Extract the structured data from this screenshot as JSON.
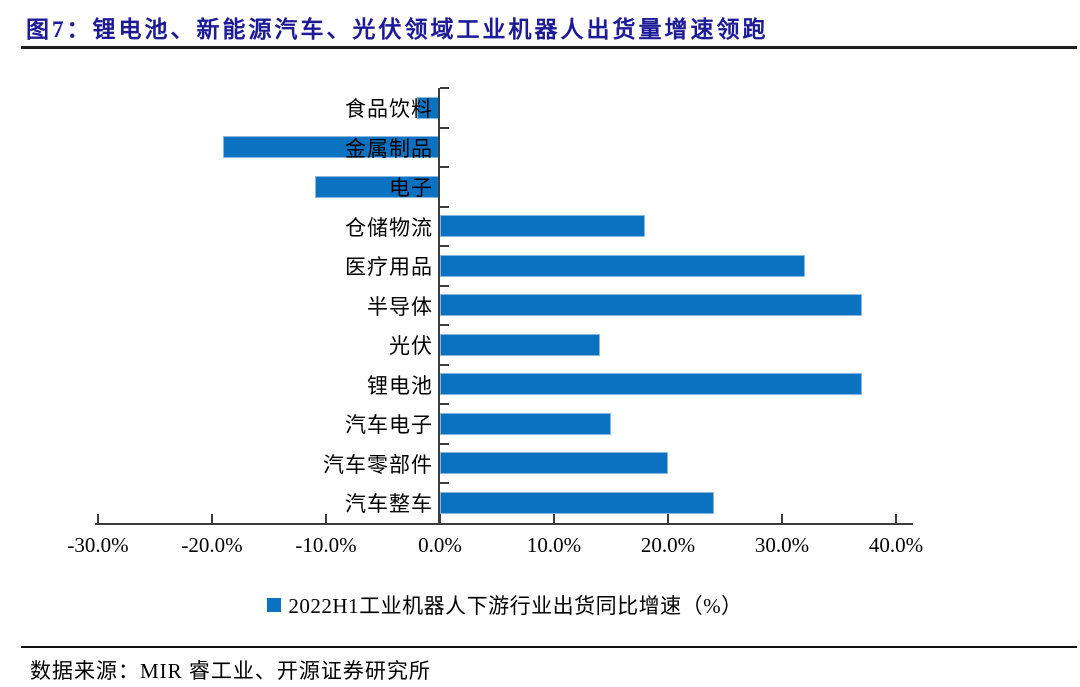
{
  "header": {
    "title": "图7：锂电池、新能源汽车、光伏领域工业机器人出货量增速领跑"
  },
  "legend": {
    "label": "2022H1工业机器人下游行业出货同比增速（%）"
  },
  "footer": {
    "source": "数据来源：MIR 睿工业、开源证券研究所"
  },
  "colors": {
    "bar_fill": "#0B71C1",
    "bar_border": "#8AB7E0",
    "title_text": "#1C1A96",
    "axis": "#3C3C3C"
  },
  "chart_data": {
    "type": "bar",
    "orientation": "horizontal",
    "title": "图7：锂电池、新能源汽车、光伏领域工业机器人出货量增速领跑",
    "categories": [
      "食品饮料",
      "金属制品",
      "电子",
      "仓储物流",
      "医疗用品",
      "半导体",
      "光伏",
      "锂电池",
      "汽车电子",
      "汽车零部件",
      "汽车整车"
    ],
    "values": [
      -2.0,
      -19.0,
      -11.0,
      18.0,
      32.0,
      37.0,
      14.0,
      37.0,
      15.0,
      20.0,
      24.0
    ],
    "series_name": "2022H1工业机器人下游行业出货同比增速（%）",
    "unit": "%",
    "xlim": [
      -30,
      40
    ],
    "x_tick_labels": [
      "-30.0%",
      "-20.0%",
      "-10.0%",
      "0.0%",
      "10.0%",
      "20.0%",
      "30.0%",
      "40.0%"
    ],
    "x_tick_values": [
      -30,
      -20,
      -10,
      0,
      10,
      20,
      30,
      40
    ],
    "grid": false,
    "legend_position": "bottom"
  }
}
